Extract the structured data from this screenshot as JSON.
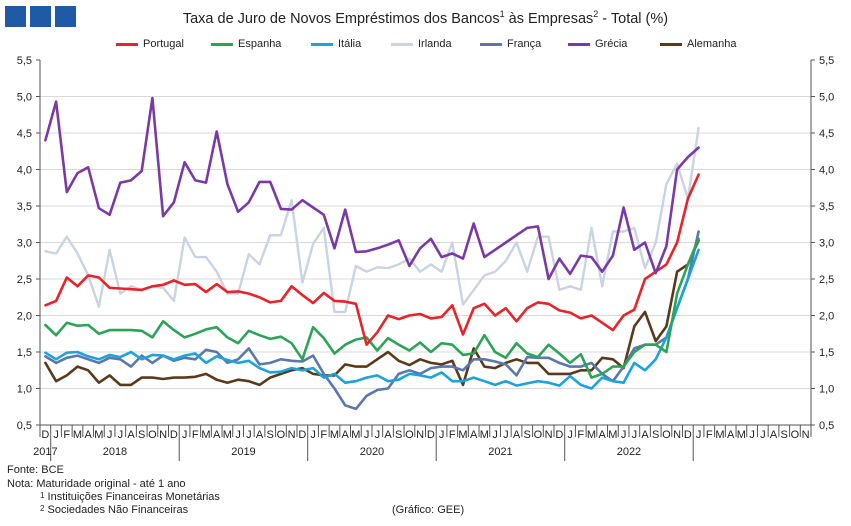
{
  "header": {
    "title_main": "Taxa de Juro de Novos Empréstimos dos Bancos",
    "title_sup1": "1",
    "title_mid": " às Empresas",
    "title_sup2": "2",
    "title_end": " - Total (%)"
  },
  "colors": {
    "logo": "#1f5aa6",
    "Portugal": "#e8232a",
    "Espanha": "#2ba457",
    "Itália": "#1aa3dd",
    "Irlanda": "#c9d3e3",
    "França": "#5a78ad",
    "Grécia": "#7a3aa6",
    "Alemanha": "#5b3a1c"
  },
  "chart_data": {
    "type": "line",
    "title": "Taxa de Juro de Novos Empréstimos dos Bancos às Empresas - Total (%)",
    "ylim": [
      0.5,
      5.5
    ],
    "yticks": [
      "0,5",
      "1,0",
      "1,5",
      "2,0",
      "2,5",
      "3,0",
      "3,5",
      "4,0",
      "4,5",
      "5,0",
      "5,5"
    ],
    "month_labels": [
      "D",
      "J",
      "F",
      "M",
      "A",
      "M",
      "J",
      "J",
      "A",
      "S",
      "O",
      "N",
      "D",
      "J",
      "F",
      "M",
      "A",
      "M",
      "J",
      "J",
      "A",
      "S",
      "O",
      "N",
      "D",
      "J",
      "F",
      "M",
      "A",
      "M",
      "J",
      "J",
      "A",
      "S",
      "O",
      "N",
      "D",
      "J",
      "F",
      "M",
      "A",
      "M",
      "J",
      "J",
      "A",
      "S",
      "O",
      "N",
      "D",
      "J",
      "F",
      "M",
      "A",
      "M",
      "J",
      "J",
      "A",
      "S",
      "O",
      "N",
      "D",
      "J",
      "F",
      "M",
      "A",
      "M",
      "J",
      "J",
      "A",
      "S",
      "O",
      "N"
    ],
    "year_labels": [
      "2017",
      "2018",
      "2019",
      "2020",
      "2021",
      "2022"
    ],
    "series": [
      {
        "name": "Portugal",
        "values": [
          2.14,
          2.2,
          2.52,
          2.4,
          2.55,
          2.52,
          2.38,
          2.37,
          2.36,
          2.35,
          2.4,
          2.42,
          2.48,
          2.42,
          2.43,
          2.32,
          2.43,
          2.32,
          2.33,
          2.3,
          2.25,
          2.18,
          2.2,
          2.4,
          2.28,
          2.17,
          2.31,
          2.2,
          2.19,
          2.16,
          1.6,
          1.77,
          2.0,
          1.95,
          2.0,
          2.02,
          1.96,
          1.98,
          2.14,
          1.74,
          2.1,
          2.16,
          2.0,
          2.1,
          1.92,
          2.1,
          2.18,
          2.16,
          2.07,
          2.04,
          1.96,
          2.0,
          1.9,
          1.8,
          2.0,
          2.08,
          2.5,
          2.6,
          2.7,
          3.0,
          3.6,
          3.93
        ]
      },
      {
        "name": "Espanha",
        "values": [
          1.87,
          1.73,
          1.9,
          1.86,
          1.87,
          1.75,
          1.8,
          1.8,
          1.8,
          1.79,
          1.7,
          1.92,
          1.8,
          1.7,
          1.75,
          1.81,
          1.84,
          1.7,
          1.62,
          1.79,
          1.73,
          1.68,
          1.71,
          1.62,
          1.4,
          1.84,
          1.69,
          1.48,
          1.6,
          1.67,
          1.7,
          1.52,
          1.69,
          1.6,
          1.52,
          1.63,
          1.5,
          1.62,
          1.6,
          1.46,
          1.48,
          1.73,
          1.5,
          1.42,
          1.62,
          1.48,
          1.43,
          1.6,
          1.48,
          1.35,
          1.47,
          1.15,
          1.2,
          1.3,
          1.3,
          1.5,
          1.6,
          1.6,
          1.5,
          2.3,
          2.7,
          3.05
        ]
      },
      {
        "name": "Itália",
        "values": [
          1.49,
          1.4,
          1.49,
          1.5,
          1.44,
          1.4,
          1.46,
          1.43,
          1.5,
          1.4,
          1.46,
          1.45,
          1.4,
          1.45,
          1.48,
          1.35,
          1.44,
          1.39,
          1.35,
          1.38,
          1.28,
          1.22,
          1.23,
          1.28,
          1.25,
          1.28,
          1.15,
          1.2,
          1.08,
          1.1,
          1.15,
          1.18,
          1.1,
          1.12,
          1.2,
          1.18,
          1.15,
          1.22,
          1.1,
          1.1,
          1.15,
          1.1,
          1.05,
          1.1,
          1.04,
          1.07,
          1.1,
          1.08,
          1.04,
          1.17,
          1.05,
          1.0,
          1.15,
          1.1,
          1.08,
          1.35,
          1.25,
          1.4,
          1.7,
          2.1,
          2.5,
          2.9
        ]
      },
      {
        "name": "Irlanda",
        "values": [
          2.88,
          2.85,
          3.08,
          2.85,
          2.55,
          2.12,
          2.9,
          2.3,
          2.4,
          2.35,
          2.4,
          2.38,
          2.2,
          3.07,
          2.8,
          2.8,
          2.6,
          2.3,
          2.3,
          2.84,
          2.7,
          3.1,
          3.1,
          3.58,
          2.45,
          2.98,
          3.2,
          2.05,
          2.05,
          2.68,
          2.6,
          2.66,
          2.65,
          2.7,
          2.78,
          2.6,
          2.7,
          2.6,
          3.0,
          2.15,
          2.35,
          2.55,
          2.6,
          2.75,
          3.0,
          2.6,
          3.08,
          3.08,
          2.35,
          2.4,
          2.35,
          3.2,
          2.4,
          3.15,
          3.15,
          3.2,
          2.65,
          3.0,
          3.8,
          4.08,
          3.6,
          4.57
        ]
      },
      {
        "name": "França",
        "values": [
          1.44,
          1.35,
          1.42,
          1.45,
          1.4,
          1.35,
          1.42,
          1.4,
          1.3,
          1.45,
          1.35,
          1.45,
          1.38,
          1.42,
          1.4,
          1.53,
          1.5,
          1.35,
          1.4,
          1.55,
          1.33,
          1.35,
          1.4,
          1.38,
          1.37,
          1.45,
          1.2,
          1.0,
          0.77,
          0.72,
          0.9,
          0.98,
          1.0,
          1.2,
          1.25,
          1.2,
          1.28,
          1.3,
          1.3,
          1.25,
          1.4,
          1.4,
          1.37,
          1.33,
          1.18,
          1.43,
          1.42,
          1.42,
          1.35,
          1.3,
          1.3,
          1.35,
          1.2,
          1.1,
          1.3,
          1.55,
          1.6,
          1.6,
          1.7,
          2.1,
          2.5,
          3.15
        ]
      },
      {
        "name": "Grécia",
        "values": [
          4.4,
          4.93,
          3.69,
          3.95,
          4.03,
          3.47,
          3.38,
          3.82,
          3.85,
          3.98,
          4.98,
          3.36,
          3.55,
          4.1,
          3.85,
          3.82,
          4.52,
          3.8,
          3.42,
          3.55,
          3.83,
          3.83,
          3.46,
          3.45,
          3.58,
          3.48,
          3.38,
          2.92,
          3.45,
          2.87,
          2.88,
          2.92,
          2.97,
          3.03,
          2.68,
          2.92,
          3.05,
          2.8,
          2.85,
          2.78,
          3.26,
          2.8,
          2.9,
          3.0,
          3.1,
          3.2,
          3.22,
          2.5,
          2.78,
          2.57,
          2.82,
          2.8,
          2.6,
          2.82,
          3.48,
          2.9,
          3.0,
          2.58,
          2.95,
          4.0,
          4.17,
          4.3
        ]
      },
      {
        "name": "Alemanha",
        "values": [
          1.35,
          1.1,
          1.18,
          1.3,
          1.25,
          1.08,
          1.18,
          1.05,
          1.05,
          1.15,
          1.15,
          1.13,
          1.15,
          1.15,
          1.16,
          1.2,
          1.12,
          1.08,
          1.12,
          1.1,
          1.05,
          1.15,
          1.2,
          1.25,
          1.28,
          1.2,
          1.18,
          1.18,
          1.33,
          1.3,
          1.3,
          1.4,
          1.5,
          1.38,
          1.32,
          1.4,
          1.35,
          1.33,
          1.38,
          1.05,
          1.55,
          1.3,
          1.28,
          1.35,
          1.4,
          1.35,
          1.35,
          1.2,
          1.2,
          1.2,
          1.25,
          1.25,
          1.42,
          1.4,
          1.28,
          1.85,
          2.05,
          1.65,
          1.85,
          2.6,
          2.7,
          3.03
        ]
      }
    ]
  },
  "legend": {
    "items": [
      "Portugal",
      "Espanha",
      "Itália",
      "Irlanda",
      "França",
      "Grécia",
      "Alemanha"
    ]
  },
  "footnotes": {
    "source": "Fonte:  BCE",
    "note": "Nota: Maturidade original - até 1 ano",
    "fn1_sup": "1",
    "fn1": "Instituições Financeiras Monetárias",
    "fn2_sup": "2",
    "fn2": "Sociedades Não Financeiras",
    "credit": "(Gráfico: GEE)"
  }
}
